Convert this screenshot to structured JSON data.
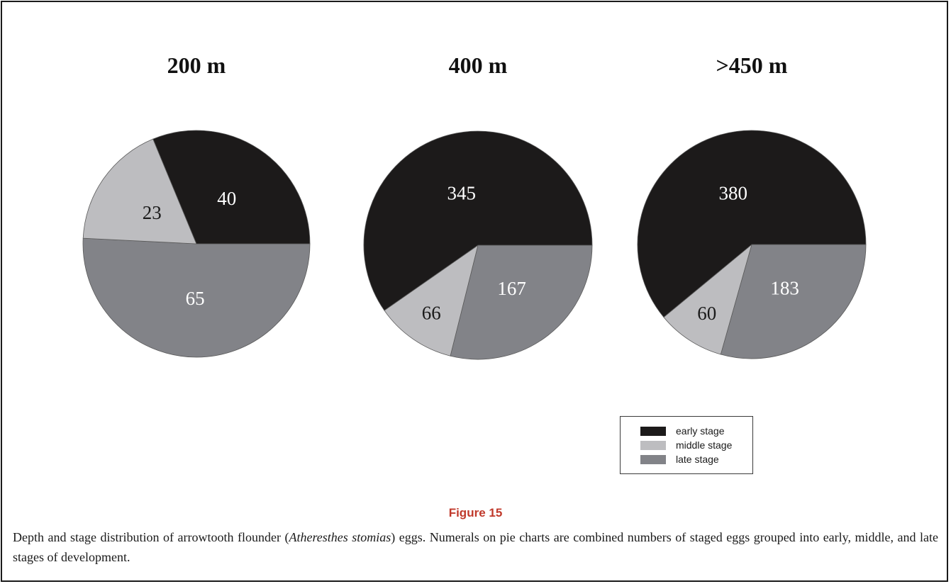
{
  "figure": {
    "label": "Figure 15",
    "caption_before": "Depth and stage distribution of arrowtooth flounder (",
    "caption_italic": "Atheresthes stomias",
    "caption_after": ") eggs. Numerals on pie charts are combined numbers of staged eggs grouped into early, middle, and late stages of development."
  },
  "legend": {
    "items": [
      {
        "label": "early stage",
        "color": "#1c1a1a"
      },
      {
        "label": "middle stage",
        "color": "#bdbdc0"
      },
      {
        "label": "late stage",
        "color": "#828388"
      }
    ]
  },
  "chart_data": [
    {
      "type": "pie",
      "title": "200 m",
      "slices": [
        {
          "label": "early stage",
          "value": 40,
          "color": "#1c1a1a",
          "label_color": "#ffffff"
        },
        {
          "label": "middle stage",
          "value": 23,
          "color": "#bdbdc0",
          "label_color": "#1a1a1a"
        },
        {
          "label": "late stage",
          "value": 65,
          "color": "#828388",
          "label_color": "#ffffff"
        }
      ]
    },
    {
      "type": "pie",
      "title": "400 m",
      "slices": [
        {
          "label": "early stage",
          "value": 345,
          "color": "#1c1a1a",
          "label_color": "#ffffff"
        },
        {
          "label": "middle stage",
          "value": 66,
          "color": "#bdbdc0",
          "label_color": "#1a1a1a"
        },
        {
          "label": "late stage",
          "value": 167,
          "color": "#828388",
          "label_color": "#ffffff"
        }
      ]
    },
    {
      "type": "pie",
      "title": ">450 m",
      "slices": [
        {
          "label": "early stage",
          "value": 380,
          "color": "#1c1a1a",
          "label_color": "#ffffff"
        },
        {
          "label": "middle stage",
          "value": 60,
          "color": "#bdbdc0",
          "label_color": "#1a1a1a"
        },
        {
          "label": "late stage",
          "value": 183,
          "color": "#828388",
          "label_color": "#ffffff"
        }
      ]
    }
  ]
}
